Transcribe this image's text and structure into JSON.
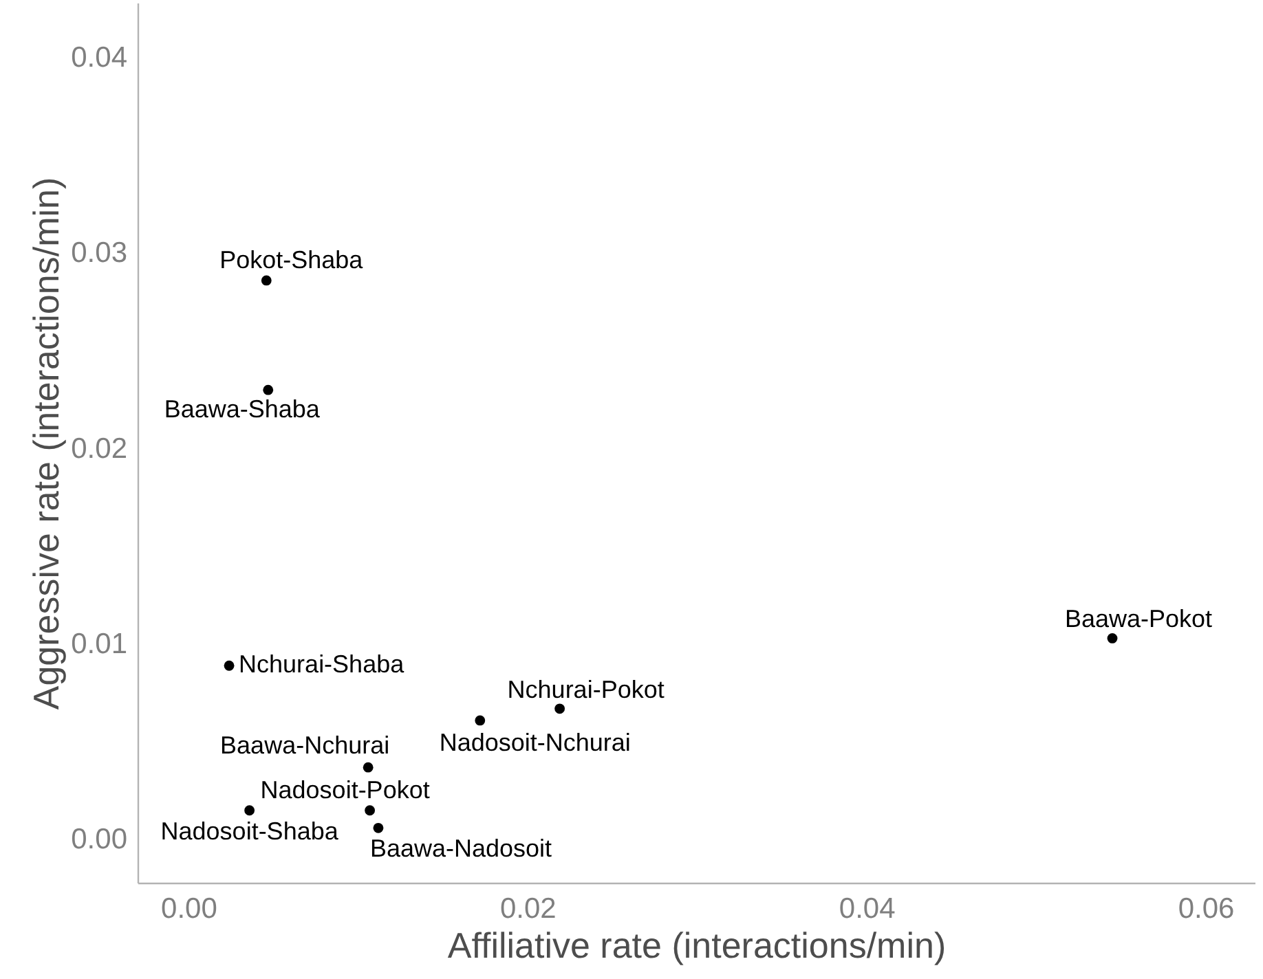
{
  "chart_data": {
    "type": "scatter",
    "xlabel": "Affiliative rate (interactions/min)",
    "ylabel": "Aggressive rate (interactions/min)",
    "x": [
      0.0046,
      0.0047,
      0.0024,
      0.0106,
      0.0107,
      0.0036,
      0.0112,
      0.0172,
      0.0219,
      0.0545
    ],
    "series": [
      {
        "color": "#000000",
        "values": [
          0.0286,
          0.023,
          0.0089,
          0.0037,
          0.0015,
          0.0015,
          0.0006,
          0.0061,
          0.0067,
          0.0103
        ]
      }
    ],
    "annotations": [
      {
        "text": "Pokot-Shaba",
        "x": 0.0046,
        "y": 0.0286
      },
      {
        "text": "Baawa-Shaba",
        "x": 0.0047,
        "y": 0.023
      },
      {
        "text": "Nchurai-Shaba",
        "x": 0.0024,
        "y": 0.0089
      },
      {
        "text": "Baawa-Nchurai",
        "x": 0.0106,
        "y": 0.0037
      },
      {
        "text": "Nadosoit-Pokot",
        "x": 0.0107,
        "y": 0.0015
      },
      {
        "text": "Nadosoit-Shaba",
        "x": 0.0036,
        "y": 0.0015
      },
      {
        "text": "Baawa-Nadosoit",
        "x": 0.0112,
        "y": 0.0006
      },
      {
        "text": "Nadosoit-Nchurai",
        "x": 0.0172,
        "y": 0.0061
      },
      {
        "text": "Nchurai-Pokot",
        "x": 0.0219,
        "y": 0.0067
      },
      {
        "text": "Baawa-Pokot",
        "x": 0.0545,
        "y": 0.0103
      }
    ],
    "xlim": [
      -0.003,
      0.0629
    ],
    "ylim": [
      -0.0022,
      0.0428
    ],
    "xticks": [
      {
        "value": 0,
        "label": "0.00"
      },
      {
        "value": 0.02,
        "label": "0.02"
      },
      {
        "value": 0.04,
        "label": "0.04"
      },
      {
        "value": 0.06,
        "label": "0.06"
      }
    ],
    "yticks": [
      {
        "value": 0,
        "label": "0.00"
      },
      {
        "value": 0.01,
        "label": "0.01"
      },
      {
        "value": 0.02,
        "label": "0.02"
      },
      {
        "value": 0.03,
        "label": "0.03"
      },
      {
        "value": 0.04,
        "label": "0.04"
      }
    ],
    "grid": false,
    "marker": "circle"
  }
}
